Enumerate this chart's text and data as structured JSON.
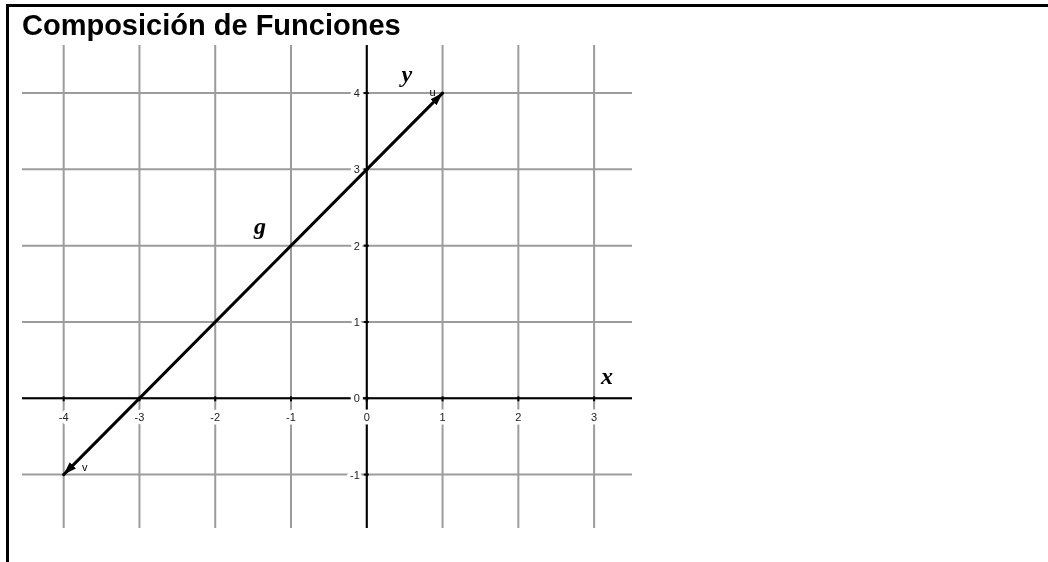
{
  "chart_data": {
    "type": "line",
    "title": "Composición de Funciones",
    "xlabel": "x",
    "ylabel": "y",
    "series": [
      {
        "name": "g",
        "color": "#000000",
        "x": [
          -4,
          1
        ],
        "values": [
          -1,
          4
        ]
      }
    ],
    "xlim": [
      -4.55,
      3.5
    ],
    "ylim": [
      -1.7,
      4.63
    ],
    "xticks": [
      -4,
      -3,
      -2,
      -1,
      0,
      1,
      2,
      3
    ],
    "yticks": [
      -1,
      0,
      1,
      2,
      3,
      4
    ],
    "grid": true,
    "annotations": [
      {
        "text": "u",
        "x": 1,
        "y": 4
      },
      {
        "text": "v",
        "x": -4,
        "y": -1
      }
    ]
  }
}
